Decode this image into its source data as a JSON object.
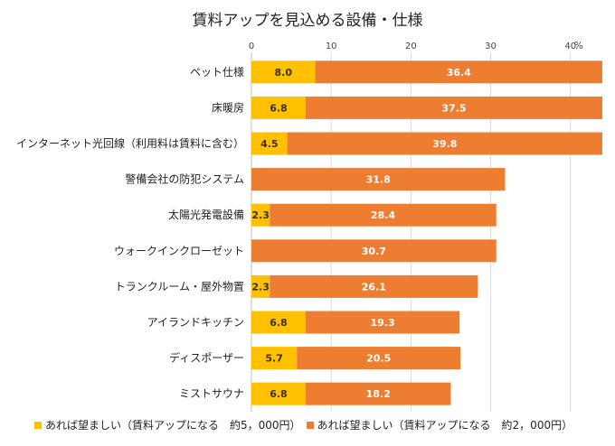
{
  "chart_data": {
    "type": "bar",
    "orientation": "horizontal",
    "stacked": true,
    "title": "賃料アップを見込める設備・仕様",
    "unit_label": "%",
    "xlim": [
      0,
      44
    ],
    "x_ticks": [
      "0",
      "10",
      "20",
      "30",
      "40"
    ],
    "grid": true,
    "legend_position": "bottom",
    "categories": [
      "ペット仕様",
      "床暖房",
      "インターネット光回線（利用料は賃料に含む）",
      "警備会社の防犯システム",
      "太陽光発電設備",
      "ウォークインクローゼット",
      "トランクルーム・屋外物置",
      "アイランドキッチン",
      "ディスポーザー",
      "ミストサウナ"
    ],
    "series": [
      {
        "name": "あれば望ましい（賃料アップになる　約5，000円）",
        "color": "#FFC000",
        "values": [
          8.0,
          6.8,
          4.5,
          null,
          2.3,
          null,
          2.3,
          6.8,
          5.7,
          6.8
        ],
        "labels": [
          "8.0",
          "6.8",
          "4.5",
          "",
          "2.3",
          "",
          "2.3",
          "6.8",
          "5.7",
          "6.8"
        ]
      },
      {
        "name": "あれば望ましい（賃料アップになる　約2，000円）",
        "color": "#ED7D31",
        "values": [
          36.4,
          37.5,
          39.8,
          31.8,
          28.4,
          30.7,
          26.1,
          19.3,
          20.5,
          18.2
        ],
        "labels": [
          "36.4",
          "37.5",
          "39.8",
          "31.8",
          "28.4",
          "30.7",
          "26.1",
          "19.3",
          "20.5",
          "18.2"
        ]
      }
    ]
  }
}
